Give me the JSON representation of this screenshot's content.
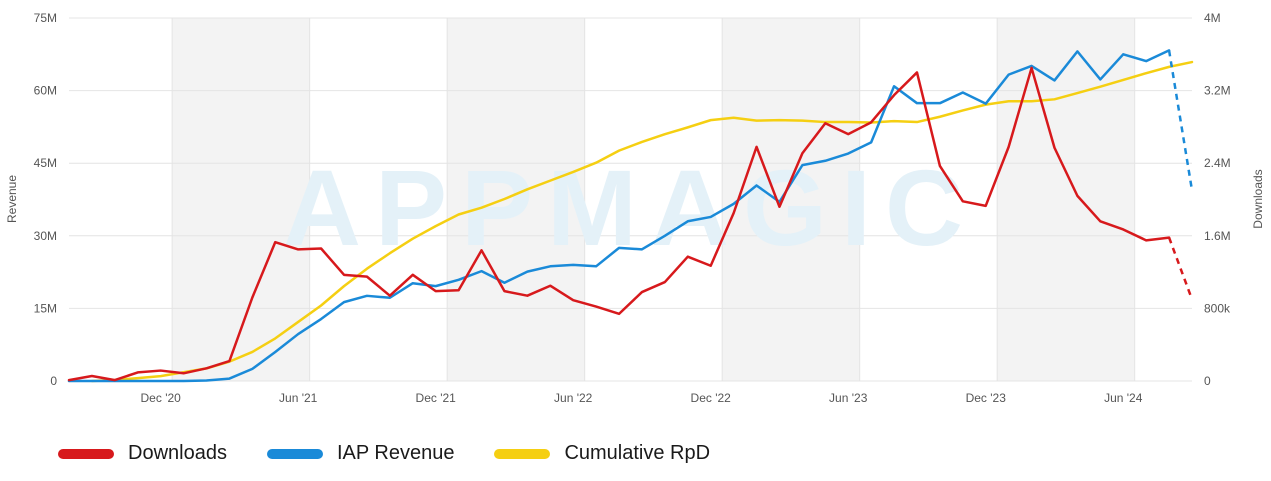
{
  "chart_data": {
    "type": "line",
    "watermark": "APPMAGIC",
    "x": [
      "2020-08",
      "2020-09",
      "2020-10",
      "2020-11",
      "2020-12",
      "2021-01",
      "2021-02",
      "2021-03",
      "2021-04",
      "2021-05",
      "2021-06",
      "2021-07",
      "2021-08",
      "2021-09",
      "2021-10",
      "2021-11",
      "2021-12",
      "2022-01",
      "2022-02",
      "2022-03",
      "2022-04",
      "2022-05",
      "2022-06",
      "2022-07",
      "2022-08",
      "2022-09",
      "2022-10",
      "2022-11",
      "2022-12",
      "2023-01",
      "2023-02",
      "2023-03",
      "2023-04",
      "2023-05",
      "2023-06",
      "2023-07",
      "2023-08",
      "2023-09",
      "2023-10",
      "2023-11",
      "2023-12",
      "2024-01",
      "2024-02",
      "2024-03",
      "2024-04",
      "2024-05",
      "2024-06",
      "2024-07",
      "2024-08",
      "2024-09"
    ],
    "x_tick_labels": [
      {
        "label": "Dec '20",
        "at": "2020-12"
      },
      {
        "label": "Jun '21",
        "at": "2021-06"
      },
      {
        "label": "Dec '21",
        "at": "2021-12"
      },
      {
        "label": "Jun '22",
        "at": "2022-06"
      },
      {
        "label": "Dec '22",
        "at": "2022-12"
      },
      {
        "label": "Jun '23",
        "at": "2023-06"
      },
      {
        "label": "Dec '23",
        "at": "2023-12"
      },
      {
        "label": "Jun '24",
        "at": "2024-06"
      }
    ],
    "shaded_ranges": [
      [
        "2021-01",
        "2021-06"
      ],
      [
        "2022-01",
        "2022-06"
      ],
      [
        "2023-01",
        "2023-06"
      ],
      [
        "2024-01",
        "2024-06"
      ]
    ],
    "y_left": {
      "label": "Revenue",
      "range": [
        0,
        75000000
      ],
      "ticks": [
        "0",
        "15M",
        "30M",
        "45M",
        "60M",
        "75M"
      ]
    },
    "y_right": {
      "label": "Downloads",
      "range": [
        0,
        4000000
      ],
      "ticks": [
        "0",
        "800k",
        "1.6M",
        "2.4M",
        "3.2M",
        "4M"
      ]
    },
    "series": [
      {
        "name": "Downloads",
        "axis": "right",
        "color": "#d7191c",
        "values": [
          10000,
          55000,
          10000,
          95000,
          115000,
          85000,
          140000,
          220000,
          920000,
          1530000,
          1450000,
          1460000,
          1170000,
          1150000,
          940000,
          1170000,
          990000,
          1000000,
          1440000,
          990000,
          940000,
          1050000,
          890000,
          820000,
          740000,
          980000,
          1090000,
          1370000,
          1270000,
          1850000,
          2580000,
          1920000,
          2510000,
          2840000,
          2720000,
          2850000,
          3150000,
          3400000,
          2370000,
          1980000,
          1930000,
          2580000,
          3450000,
          2570000,
          2040000,
          1760000,
          1670000,
          1550000,
          1580000,
          900000
        ],
        "projected_from_index": 48
      },
      {
        "name": "IAP Revenue",
        "axis": "left",
        "color": "#1a8ad8",
        "values": [
          0,
          0,
          0,
          0,
          0,
          0,
          100000,
          500000,
          2500000,
          6000000,
          9700000,
          12800000,
          16300000,
          17600000,
          17200000,
          20200000,
          19600000,
          20900000,
          22700000,
          20300000,
          22600000,
          23700000,
          24000000,
          23700000,
          27500000,
          27200000,
          30000000,
          33000000,
          33900000,
          36600000,
          40400000,
          37000000,
          44600000,
          45500000,
          47000000,
          49300000,
          60900000,
          57400000,
          57400000,
          59600000,
          57300000,
          63300000,
          65100000,
          62100000,
          68100000,
          62300000,
          67500000,
          66100000,
          68300000,
          39400000
        ],
        "projected_from_index": 48
      },
      {
        "name": "Cumulative RpD",
        "axis": "left",
        "color": "#f5cf12",
        "values": [
          null,
          0,
          200000,
          600000,
          1000000,
          1800000,
          2600000,
          4000000,
          6000000,
          8800000,
          12200000,
          15600000,
          19600000,
          23200000,
          26400000,
          29400000,
          32000000,
          34400000,
          35800000,
          37600000,
          39600000,
          41400000,
          43200000,
          45100000,
          47600000,
          49400000,
          51000000,
          52400000,
          53900000,
          54400000,
          53800000,
          53900000,
          53800000,
          53500000,
          53500000,
          53400000,
          53700000,
          53500000,
          54600000,
          55900000,
          57100000,
          57800000,
          57800000,
          58200000,
          59500000,
          60800000,
          62200000,
          63600000,
          64900000,
          65900000
        ],
        "projected_from_index": null
      }
    ],
    "legend": [
      {
        "name": "Downloads",
        "color": "#d7191c"
      },
      {
        "name": "IAP Revenue",
        "color": "#1a8ad8"
      },
      {
        "name": "Cumulative RpD",
        "color": "#f5cf12"
      }
    ]
  }
}
